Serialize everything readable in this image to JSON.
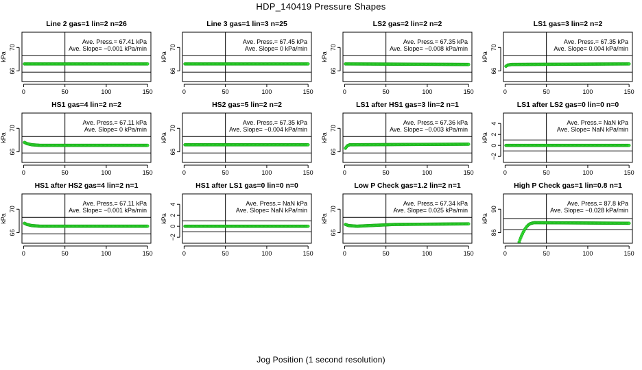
{
  "page": {
    "title": "HDP_140419  Pressure Shapes",
    "xlabel": "Jog Position (1 second resolution)"
  },
  "style": {
    "point_color": "#33dd33",
    "point_stroke": "#119911",
    "line_color": "#000000"
  },
  "chart_data": [
    {
      "type": "scatter",
      "title": "Line 2 gas=1 lin=2 n=26",
      "ylabel": "kPa",
      "xlim": [
        0,
        150
      ],
      "xticks": [
        0,
        50,
        100,
        150
      ],
      "yticks": [
        66,
        70
      ],
      "ylim": [
        64.2,
        72.6
      ],
      "hlines": [
        65.8,
        68.6
      ],
      "vline": 50,
      "annotations": [
        "Ave. Press.= 67.41 kPa",
        "Ave. Slope= −0.001 kPa/min"
      ],
      "series": [
        {
          "x": [
            1,
            150
          ],
          "y": [
            67.2,
            67.2
          ]
        }
      ]
    },
    {
      "type": "scatter",
      "title": "Line 3 gas=1 lin=3 n=25",
      "ylabel": "kPa",
      "xlim": [
        0,
        150
      ],
      "xticks": [
        0,
        50,
        100,
        150
      ],
      "yticks": [
        66,
        70
      ],
      "ylim": [
        64.2,
        72.6
      ],
      "hlines": [
        65.8,
        68.6
      ],
      "vline": 50,
      "annotations": [
        "Ave. Press.= 67.45 kPa",
        "Ave. Slope= 0 kPa/min"
      ],
      "series": [
        {
          "x": [
            1,
            150
          ],
          "y": [
            67.2,
            67.2
          ]
        }
      ]
    },
    {
      "type": "scatter",
      "title": "LS2 gas=2 lin=2 n=2",
      "ylabel": "kPa",
      "xlim": [
        0,
        150
      ],
      "xticks": [
        0,
        50,
        100,
        150
      ],
      "yticks": [
        66,
        70
      ],
      "ylim": [
        64.2,
        72.6
      ],
      "hlines": [
        65.8,
        68.6
      ],
      "vline": 50,
      "annotations": [
        "Ave. Press.= 67.35 kPa",
        "Ave. Slope= −0.008 kPa/min"
      ],
      "series": [
        {
          "x": [
            1,
            150
          ],
          "y": [
            67.2,
            67.1
          ]
        }
      ]
    },
    {
      "type": "scatter",
      "title": "LS1 gas=3 lin=2 n=2",
      "ylabel": "kPa",
      "xlim": [
        0,
        150
      ],
      "xticks": [
        0,
        50,
        100,
        150
      ],
      "yticks": [
        66,
        70
      ],
      "ylim": [
        64.2,
        72.6
      ],
      "hlines": [
        65.8,
        68.6
      ],
      "vline": 50,
      "annotations": [
        "Ave. Press.= 67.35 kPa",
        "Ave. Slope= 0.004 kPa/min"
      ],
      "series": [
        {
          "x": [
            1,
            3,
            8,
            150
          ],
          "y": [
            66.8,
            67.0,
            67.1,
            67.2
          ]
        }
      ]
    },
    {
      "type": "scatter",
      "title": "HS1 gas=4 lin=2 n=2",
      "ylabel": "kPa",
      "xlim": [
        0,
        150
      ],
      "xticks": [
        0,
        50,
        100,
        150
      ],
      "yticks": [
        66,
        70
      ],
      "ylim": [
        64.2,
        72.6
      ],
      "hlines": [
        65.8,
        68.6
      ],
      "vline": 50,
      "annotations": [
        "Ave. Press.= 67.11 kPa",
        "Ave. Slope= 0 kPa/min"
      ],
      "series": [
        {
          "x": [
            1,
            4,
            10,
            20,
            150
          ],
          "y": [
            67.6,
            67.4,
            67.2,
            67.1,
            67.1
          ]
        }
      ]
    },
    {
      "type": "scatter",
      "title": "HS2 gas=5 lin=2 n=2",
      "ylabel": "kPa",
      "xlim": [
        0,
        150
      ],
      "xticks": [
        0,
        50,
        100,
        150
      ],
      "yticks": [
        66,
        70
      ],
      "ylim": [
        64.2,
        72.6
      ],
      "hlines": [
        65.8,
        68.6
      ],
      "vline": 50,
      "annotations": [
        "Ave. Press.= 67.35 kPa",
        "Ave. Slope= −0.004 kPa/min"
      ],
      "series": [
        {
          "x": [
            1,
            150
          ],
          "y": [
            67.2,
            67.2
          ]
        }
      ]
    },
    {
      "type": "scatter",
      "title": "LS1 after HS1 gas=3 lin=2 n=1",
      "ylabel": "kPa",
      "xlim": [
        0,
        150
      ],
      "xticks": [
        0,
        50,
        100,
        150
      ],
      "yticks": [
        66,
        70
      ],
      "ylim": [
        64.2,
        72.6
      ],
      "hlines": [
        65.8,
        68.6
      ],
      "vline": 50,
      "annotations": [
        "Ave. Press.= 67.36 kPa",
        "Ave. Slope= −0.003 kPa/min"
      ],
      "series": [
        {
          "x": [
            1,
            3,
            6,
            150
          ],
          "y": [
            66.6,
            67.0,
            67.2,
            67.3
          ]
        }
      ]
    },
    {
      "type": "scatter",
      "title": "LS1 after LS2 gas=0 lin=0 n=0",
      "ylabel": "kPa",
      "xlim": [
        0,
        150
      ],
      "xticks": [
        0,
        50,
        100,
        150
      ],
      "yticks": [
        -2,
        0,
        2,
        4
      ],
      "ylim": [
        -3.1,
        5.9
      ],
      "hlines": [
        -1.0,
        1.0
      ],
      "vline": 50,
      "annotations": [
        "Ave. Press.= NaN kPa",
        "Ave. Slope= NaN kPa/min"
      ],
      "series": [
        {
          "x": [
            1,
            150
          ],
          "y": [
            0,
            0
          ]
        }
      ]
    },
    {
      "type": "scatter",
      "title": "HS1 after HS2 gas=4 lin=2 n=1",
      "ylabel": "kPa",
      "xlim": [
        0,
        150
      ],
      "xticks": [
        0,
        50,
        100,
        150
      ],
      "yticks": [
        66,
        70
      ],
      "ylim": [
        64.2,
        72.6
      ],
      "hlines": [
        65.8,
        68.6
      ],
      "vline": 50,
      "annotations": [
        "Ave. Press.= 67.11 kPa",
        "Ave. Slope= −0.001 kPa/min"
      ],
      "series": [
        {
          "x": [
            1,
            4,
            10,
            20,
            150
          ],
          "y": [
            67.6,
            67.4,
            67.2,
            67.1,
            67.1
          ]
        }
      ]
    },
    {
      "type": "scatter",
      "title": "HS1 after LS1 gas=0 lin=0 n=0",
      "ylabel": "kPa",
      "xlim": [
        0,
        150
      ],
      "xticks": [
        0,
        50,
        100,
        150
      ],
      "yticks": [
        -2,
        0,
        2,
        4
      ],
      "ylim": [
        -3.1,
        5.9
      ],
      "hlines": [
        -1.0,
        1.0
      ],
      "vline": 50,
      "annotations": [
        "Ave. Press.= NaN kPa",
        "Ave. Slope= NaN kPa/min"
      ],
      "series": [
        {
          "x": [
            1,
            150
          ],
          "y": [
            0,
            0
          ]
        }
      ]
    },
    {
      "type": "scatter",
      "title": "Low P Check gas=1.2 lin=2 n=1",
      "ylabel": "kPa",
      "xlim": [
        0,
        150
      ],
      "xticks": [
        0,
        50,
        100,
        150
      ],
      "yticks": [
        66,
        70
      ],
      "ylim": [
        64.2,
        72.6
      ],
      "hlines": [
        65.8,
        68.6
      ],
      "vline": 50,
      "annotations": [
        "Ave. Press.= 67.34 kPa",
        "Ave. Slope= 0.025 kPa/min"
      ],
      "series": [
        {
          "x": [
            1,
            5,
            15,
            30,
            45,
            60,
            150
          ],
          "y": [
            67.4,
            67.2,
            67.1,
            67.2,
            67.3,
            67.4,
            67.5
          ]
        }
      ]
    },
    {
      "type": "scatter",
      "title": "High P Check gas=1 lin=0.8 n=1",
      "ylabel": "kPa",
      "xlim": [
        0,
        150
      ],
      "xticks": [
        0,
        50,
        100,
        150
      ],
      "yticks": [
        86,
        90
      ],
      "ylim": [
        84.2,
        92.6
      ],
      "hlines": [
        86.5,
        88.4
      ],
      "vline": 50,
      "annotations": [
        "Ave. Press.= 87.8 kPa",
        "Ave. Slope= −0.028 kPa/min"
      ],
      "series": [
        {
          "x": [
            16,
            18,
            20,
            22,
            24,
            26,
            28,
            30,
            32,
            35,
            40,
            150
          ],
          "y": [
            84.0,
            84.8,
            85.5,
            86.1,
            86.6,
            87.0,
            87.3,
            87.5,
            87.6,
            87.7,
            87.7,
            87.6
          ]
        }
      ]
    }
  ]
}
